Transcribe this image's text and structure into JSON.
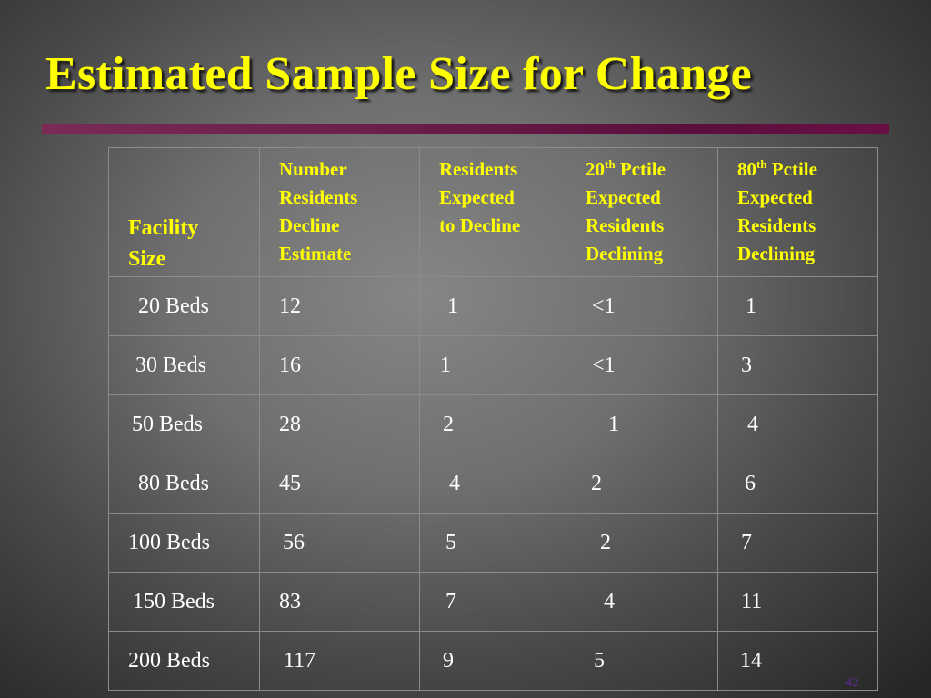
{
  "slide": {
    "title": "Estimated Sample Size for Change",
    "page_number": "42"
  },
  "table": {
    "headers": {
      "facility": "Facility\nSize",
      "number": "Number\nResidents\nDecline\nEstimate",
      "residents": "Residents\nExpected\nto  Decline",
      "p20_num": "20",
      "p20_sup": "th",
      "p20_rest": "  Pctile\nExpected\nResidents\nDeclining",
      "p80_num": "80",
      "p80_sup": "th",
      "p80_rest": " Pctile\nExpected\nResidents\nDeclining"
    },
    "rows": [
      {
        "facility": "20 Beds",
        "number": "12",
        "expected": "1",
        "p20": "<1",
        "p80": "1"
      },
      {
        "facility": "30 Beds",
        "number": "16",
        "expected": "1",
        "p20": "<1",
        "p80": "3"
      },
      {
        "facility": "50 Beds",
        "number": "28",
        "expected": "2",
        "p20": "1",
        "p80": "4"
      },
      {
        "facility": "80 Beds",
        "number": "45",
        "expected": "4",
        "p20": "2",
        "p80": "6"
      },
      {
        "facility": "100 Beds",
        "number": "56",
        "expected": "5",
        "p20": "2",
        "p80": "7"
      },
      {
        "facility": "150 Beds",
        "number": "83",
        "expected": "7",
        "p20": "4",
        "p80": "11"
      },
      {
        "facility": "200 Beds",
        "number": "117",
        "expected": "9",
        "p20": "5",
        "p80": "14"
      }
    ]
  },
  "colors": {
    "title": "#ffff00",
    "header_text": "#ffff00",
    "body_text": "#ffffff",
    "rule": "#6b1f4b"
  }
}
